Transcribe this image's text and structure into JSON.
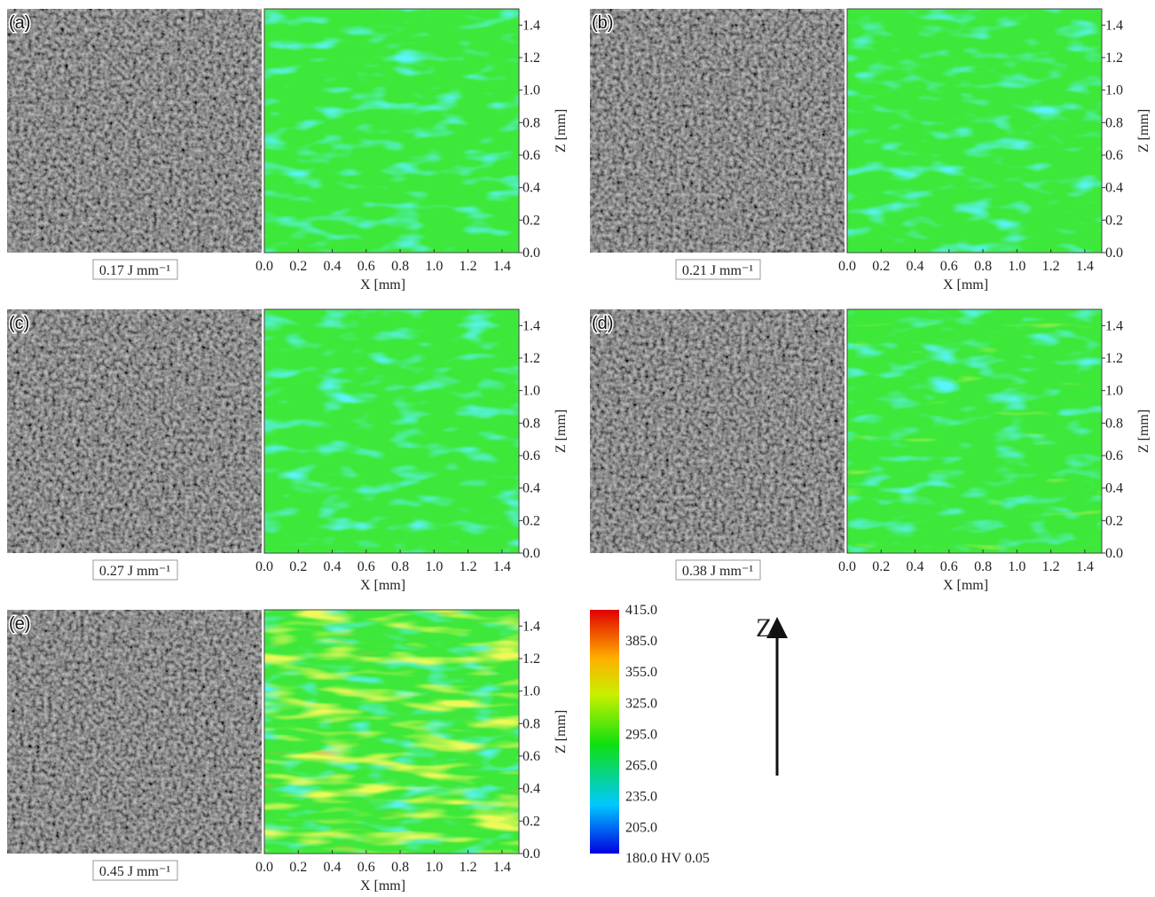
{
  "panels": [
    {
      "label": "(a)",
      "energy": "0.17 J mm⁻¹"
    },
    {
      "label": "(b)",
      "energy": "0.21 J mm⁻¹"
    },
    {
      "label": "(c)",
      "energy": "0.27 J mm⁻¹"
    },
    {
      "label": "(d)",
      "energy": "0.38 J mm⁻¹"
    },
    {
      "label": "(e)",
      "energy": "0.45 J mm⁻¹"
    }
  ],
  "x_axis": {
    "label": "X [mm]",
    "ticks": [
      "0.0",
      "0.2",
      "0.4",
      "0.6",
      "0.8",
      "1.0",
      "1.2",
      "1.4"
    ]
  },
  "z_axis": {
    "label": "Z [mm]",
    "ticks": [
      "0.0",
      "0.2",
      "0.4",
      "0.6",
      "0.8",
      "1.0",
      "1.2",
      "1.4"
    ]
  },
  "colorbar": {
    "ticks": [
      "415.0",
      "385.0",
      "355.0",
      "325.0",
      "295.0",
      "265.0",
      "235.0",
      "205.0"
    ],
    "bottom_label": "180.0 HV 0.05"
  },
  "build_direction": "Z"
}
